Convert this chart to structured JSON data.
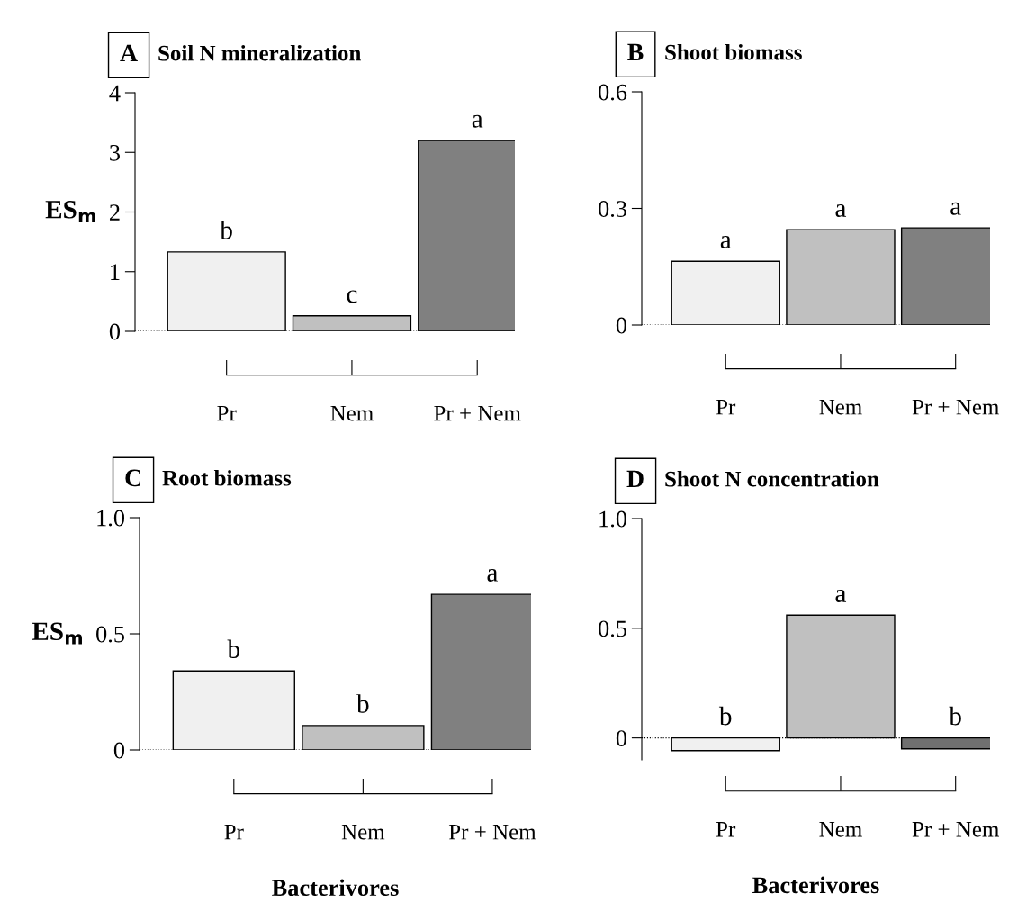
{
  "chart_data": [
    {
      "type": "bar",
      "title": "Soil N mineralization",
      "annotations": [
        "A"
      ],
      "ylabel": "ES$_{m}$",
      "categories": [
        "Pr",
        "Nem",
        "Pr + Nem"
      ],
      "values": [
        1.33,
        0.26,
        3.2
      ],
      "colors": [
        "#f0f0f0",
        "#c0c0c0",
        "#808080"
      ],
      "value_labels": [
        "b",
        "c",
        "a"
      ],
      "ylim": [
        0,
        4
      ],
      "yticks": [
        0,
        1,
        2,
        3,
        4
      ],
      "ref_lines": [
        {
          "axis": "y",
          "value": 0,
          "line_style": "dotted"
        }
      ],
      "grid": false,
      "legend": false
    },
    {
      "type": "bar",
      "title": "Shoot biomass",
      "annotations": [
        "B"
      ],
      "categories": [
        "Pr",
        "Nem",
        "Pr + Nem"
      ],
      "values": [
        0.164,
        0.245,
        0.25
      ],
      "colors": [
        "#f0f0f0",
        "#c0c0c0",
        "#808080"
      ],
      "value_labels": [
        "a",
        "a",
        "a"
      ],
      "ylim": [
        0,
        0.6
      ],
      "yticks": [
        0,
        0.3,
        0.6
      ],
      "ref_lines": [
        {
          "axis": "y",
          "value": 0,
          "line_style": "dotted"
        }
      ],
      "grid": false,
      "legend": false
    },
    {
      "type": "bar",
      "title": "Root biomass",
      "annotations": [
        "C"
      ],
      "ylabel": "ES$_{m}$",
      "xlabel": "Bacterivores",
      "categories": [
        "Pr",
        "Nem",
        "Pr + Nem"
      ],
      "values": [
        0.34,
        0.105,
        0.67
      ],
      "colors": [
        "#f0f0f0",
        "#c0c0c0",
        "#808080"
      ],
      "value_labels": [
        "b",
        "b",
        "a"
      ],
      "ylim": [
        0,
        1.0
      ],
      "yticks": [
        0,
        0.5,
        {
          "value": 1.0,
          "label": "1.0"
        }
      ],
      "ref_lines": [
        {
          "axis": "y",
          "value": 0,
          "line_style": "dotted"
        }
      ],
      "grid": false,
      "legend": false
    },
    {
      "type": "bar",
      "title": "Shoot N concentration",
      "annotations": [
        "D"
      ],
      "xlabel": "Bacterivores",
      "categories": [
        "Pr",
        "Nem",
        "Pr + Nem"
      ],
      "values": [
        -0.058,
        0.56,
        -0.05
      ],
      "colors": [
        "#f0f0f0",
        "#c0c0c0",
        "#707070"
      ],
      "value_labels": [
        "b",
        "a",
        "b"
      ],
      "ylim": [
        -0.1,
        1.0
      ],
      "yticks": [
        0,
        0.5,
        {
          "value": 1.0,
          "label": "1.0"
        }
      ],
      "ref_lines": [
        {
          "axis": "y",
          "value": 0,
          "line_style": "dotted"
        }
      ],
      "grid": false,
      "legend": false
    }
  ]
}
